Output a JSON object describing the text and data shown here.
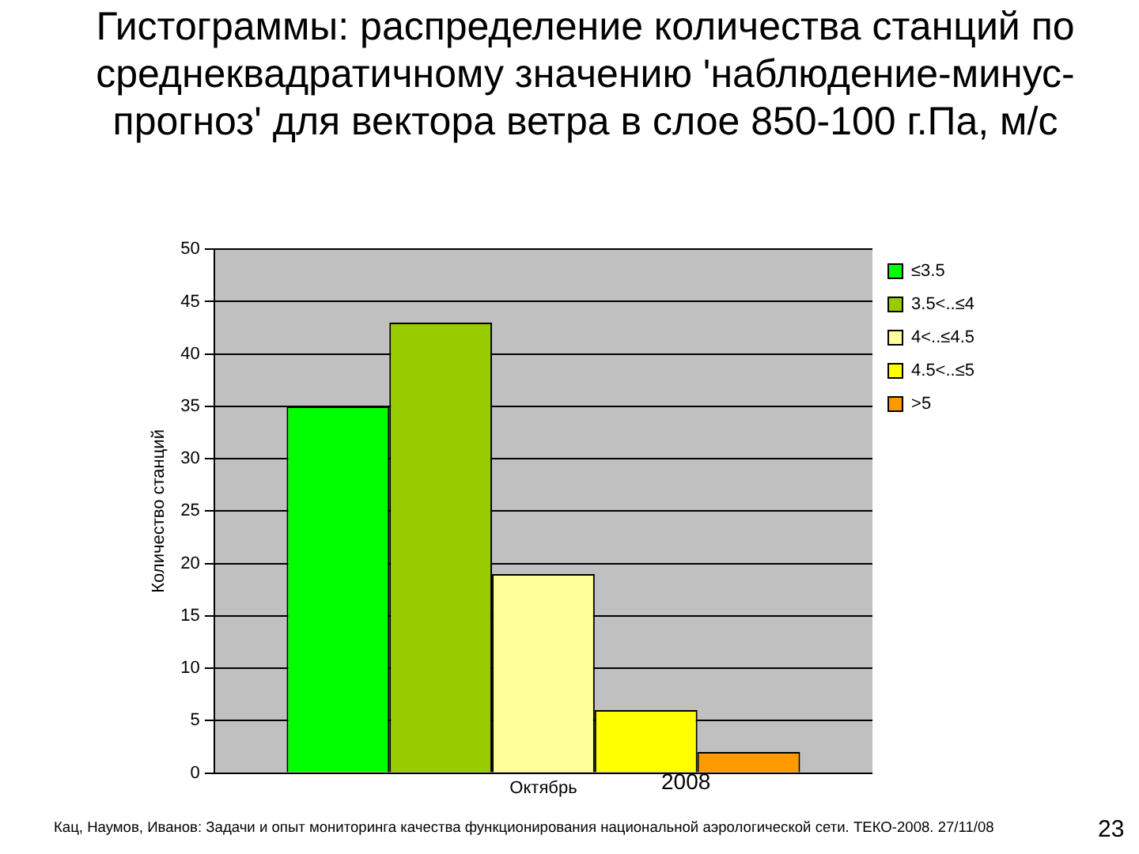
{
  "chart_data": {
    "type": "bar",
    "title": "Гистограммы: распределение количества станций по среднеквадратичному значению 'наблюдение-минус-прогноз' для вектора ветра в слое 850-100 г.Па, м/с",
    "ylabel": "Количество станций",
    "categories": [
      "Октябрь"
    ],
    "series": [
      {
        "name": "≤3.5",
        "color": "#00ff00",
        "values": [
          35
        ]
      },
      {
        "name": "3.5<..≤4",
        "color": "#99cc00",
        "values": [
          43
        ]
      },
      {
        "name": "4<..≤4.5",
        "color": "#ffff99",
        "values": [
          19
        ]
      },
      {
        "name": "4.5<..≤5",
        "color": "#ffff00",
        "values": [
          6
        ]
      },
      {
        "name": ">5",
        "color": "#ff9900",
        "values": [
          2
        ]
      }
    ],
    "ylim": [
      0,
      50
    ],
    "yticks": [
      0,
      5,
      10,
      15,
      20,
      25,
      30,
      35,
      40,
      45,
      50
    ],
    "grid": "y",
    "legend": "top right",
    "annotations": [
      "2008",
      "Кац, Наумов, Иванов: Задачи и опыт мониторинга качества функционирования национальной аэрологической сети. ТЕКО-2008. 27/11/08",
      "23"
    ]
  }
}
